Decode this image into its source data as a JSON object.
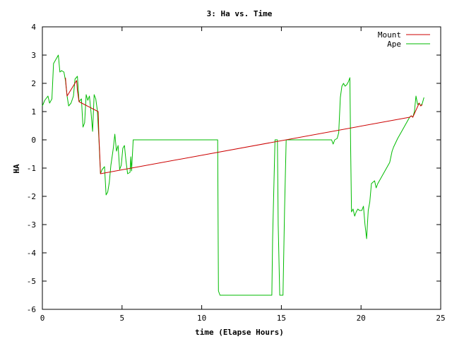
{
  "chart_data": {
    "type": "line",
    "title": "3: Ha vs. Time",
    "xlabel": "time (Elapse Hours)",
    "ylabel": "HA",
    "xlim": [
      0,
      25
    ],
    "ylim": [
      -6,
      4
    ],
    "xticks": [
      0,
      5,
      10,
      15,
      20,
      25
    ],
    "yticks": [
      -6,
      -5,
      -4,
      -3,
      -2,
      -1,
      0,
      1,
      2,
      3,
      4
    ],
    "grid": false,
    "legend_position": "top-right",
    "series": [
      {
        "name": "Mount",
        "color": "#cc0000",
        "points": [
          [
            1.45,
            2.2
          ],
          [
            1.5,
            1.85
          ],
          [
            1.55,
            1.55
          ],
          [
            2.15,
            2.1
          ],
          [
            2.2,
            1.75
          ],
          [
            2.3,
            1.35
          ],
          [
            3.5,
            1.0
          ],
          [
            3.55,
            0.1
          ],
          [
            3.6,
            -0.5
          ],
          [
            3.65,
            -1.2
          ],
          [
            23.05,
            0.8
          ],
          [
            23.15,
            0.85
          ],
          [
            23.25,
            0.8
          ],
          [
            23.65,
            1.3
          ],
          [
            23.75,
            1.2
          ],
          [
            23.85,
            1.25
          ]
        ]
      },
      {
        "name": "Ape",
        "color": "#00bb00",
        "points": [
          [
            0,
            1.2
          ],
          [
            0.15,
            1.4
          ],
          [
            0.35,
            1.55
          ],
          [
            0.45,
            1.3
          ],
          [
            0.6,
            1.45
          ],
          [
            0.7,
            2.7
          ],
          [
            0.85,
            2.85
          ],
          [
            1.0,
            3.0
          ],
          [
            1.1,
            2.4
          ],
          [
            1.2,
            2.45
          ],
          [
            1.35,
            2.4
          ],
          [
            1.45,
            2.1
          ],
          [
            1.55,
            1.55
          ],
          [
            1.65,
            1.2
          ],
          [
            1.8,
            1.3
          ],
          [
            1.95,
            1.55
          ],
          [
            2.05,
            2.15
          ],
          [
            2.2,
            2.25
          ],
          [
            2.3,
            1.35
          ],
          [
            2.45,
            1.45
          ],
          [
            2.55,
            0.45
          ],
          [
            2.65,
            0.6
          ],
          [
            2.75,
            1.6
          ],
          [
            2.85,
            1.4
          ],
          [
            2.95,
            1.55
          ],
          [
            3.05,
            1.0
          ],
          [
            3.15,
            0.3
          ],
          [
            3.25,
            1.6
          ],
          [
            3.35,
            1.45
          ],
          [
            3.45,
            1.05
          ],
          [
            3.55,
            0.0
          ],
          [
            3.65,
            -1.2
          ],
          [
            3.75,
            -1.05
          ],
          [
            3.9,
            -0.95
          ],
          [
            4.0,
            -1.95
          ],
          [
            4.1,
            -1.85
          ],
          [
            4.2,
            -1.5
          ],
          [
            4.3,
            -0.9
          ],
          [
            4.4,
            -0.5
          ],
          [
            4.45,
            -0.3
          ],
          [
            4.55,
            0.2
          ],
          [
            4.65,
            -0.4
          ],
          [
            4.75,
            -0.2
          ],
          [
            4.85,
            -1.05
          ],
          [
            4.95,
            -0.9
          ],
          [
            5.05,
            -0.3
          ],
          [
            5.15,
            -0.2
          ],
          [
            5.25,
            -0.75
          ],
          [
            5.35,
            -1.2
          ],
          [
            5.5,
            -1.15
          ],
          [
            5.55,
            -0.6
          ],
          [
            5.6,
            -1.1
          ],
          [
            5.7,
            0.0
          ],
          [
            11.0,
            0.0
          ],
          [
            11.05,
            -5.35
          ],
          [
            11.15,
            -5.5
          ],
          [
            14.4,
            -5.5
          ],
          [
            14.45,
            -3.5
          ],
          [
            14.6,
            0.0
          ],
          [
            14.75,
            0.0
          ],
          [
            14.8,
            -3.0
          ],
          [
            14.9,
            -5.5
          ],
          [
            15.1,
            -5.5
          ],
          [
            15.2,
            -2.5
          ],
          [
            15.3,
            0.0
          ],
          [
            18.15,
            0.0
          ],
          [
            18.25,
            -0.15
          ],
          [
            18.35,
            0.0
          ],
          [
            18.5,
            0.05
          ],
          [
            18.6,
            0.25
          ],
          [
            18.7,
            1.5
          ],
          [
            18.8,
            1.9
          ],
          [
            18.9,
            2.0
          ],
          [
            19.0,
            1.9
          ],
          [
            19.1,
            1.95
          ],
          [
            19.2,
            2.05
          ],
          [
            19.3,
            2.2
          ],
          [
            19.35,
            -0.3
          ],
          [
            19.4,
            -2.55
          ],
          [
            19.5,
            -2.45
          ],
          [
            19.6,
            -2.7
          ],
          [
            19.7,
            -2.55
          ],
          [
            19.8,
            -2.45
          ],
          [
            19.9,
            -2.5
          ],
          [
            20.05,
            -2.5
          ],
          [
            20.15,
            -2.35
          ],
          [
            20.25,
            -3.0
          ],
          [
            20.35,
            -3.5
          ],
          [
            20.45,
            -2.5
          ],
          [
            20.55,
            -2.2
          ],
          [
            20.65,
            -1.55
          ],
          [
            20.75,
            -1.5
          ],
          [
            20.85,
            -1.45
          ],
          [
            20.95,
            -1.7
          ],
          [
            21.05,
            -1.55
          ],
          [
            21.2,
            -1.4
          ],
          [
            21.4,
            -1.2
          ],
          [
            21.6,
            -1.0
          ],
          [
            21.8,
            -0.8
          ],
          [
            21.95,
            -0.4
          ],
          [
            22.05,
            -0.25
          ],
          [
            22.3,
            0.05
          ],
          [
            22.6,
            0.35
          ],
          [
            22.9,
            0.65
          ],
          [
            23.05,
            0.8
          ],
          [
            23.15,
            0.85
          ],
          [
            23.25,
            0.8
          ],
          [
            23.35,
            1.0
          ],
          [
            23.45,
            1.55
          ],
          [
            23.55,
            1.25
          ],
          [
            23.65,
            1.3
          ],
          [
            23.75,
            1.2
          ],
          [
            23.85,
            1.3
          ],
          [
            23.95,
            1.5
          ]
        ]
      }
    ]
  }
}
